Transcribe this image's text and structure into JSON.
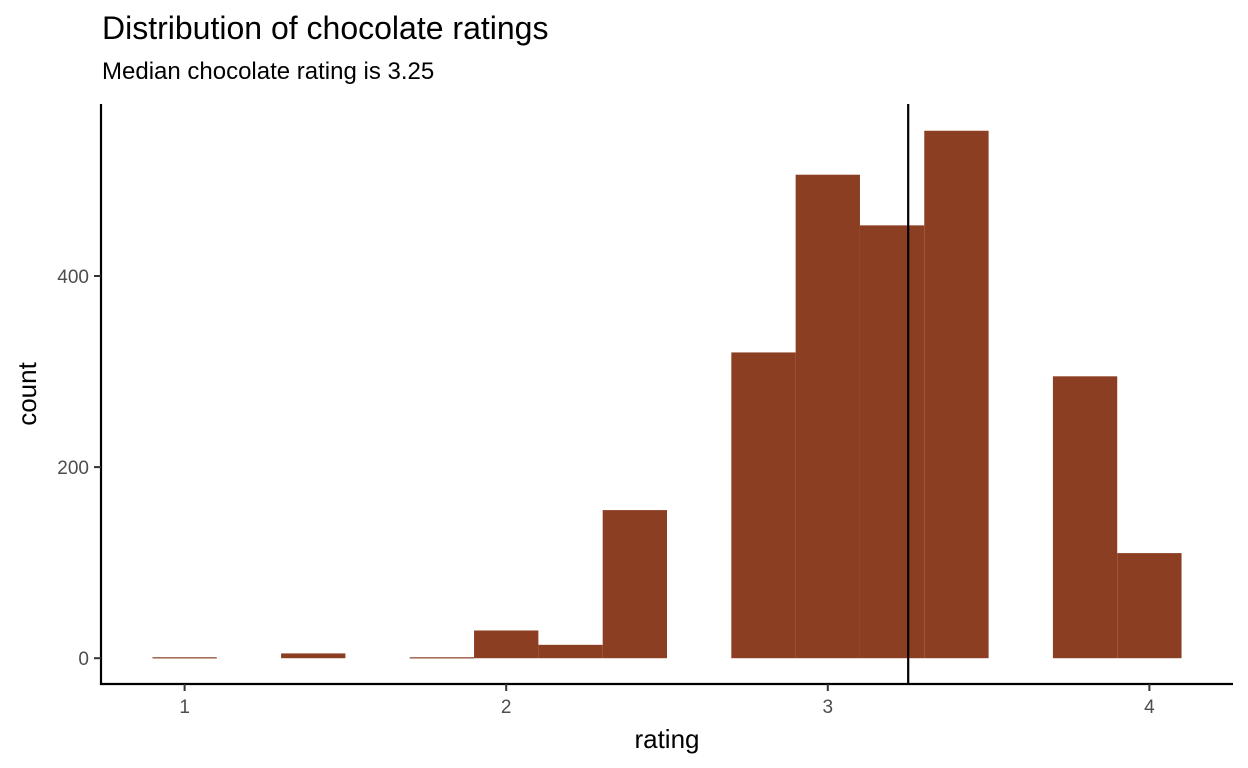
{
  "chart_data": {
    "type": "bar",
    "title": "Distribution of chocolate ratings",
    "subtitle": "Median chocolate rating is 3.25",
    "xlabel": "rating",
    "ylabel": "count",
    "xlim": [
      0.74,
      4.26
    ],
    "ylim": [
      -27,
      580
    ],
    "x_ticks": [
      1,
      2,
      3,
      4
    ],
    "y_ticks": [
      0,
      200,
      400
    ],
    "bin_width": 0.2,
    "bins": [
      {
        "x": 1.0,
        "count": 1
      },
      {
        "x": 1.2,
        "count": 0
      },
      {
        "x": 1.4,
        "count": 5
      },
      {
        "x": 1.6,
        "count": 0
      },
      {
        "x": 1.8,
        "count": 1
      },
      {
        "x": 2.0,
        "count": 29
      },
      {
        "x": 2.2,
        "count": 14
      },
      {
        "x": 2.4,
        "count": 155
      },
      {
        "x": 2.6,
        "count": 0
      },
      {
        "x": 2.8,
        "count": 320
      },
      {
        "x": 3.0,
        "count": 506
      },
      {
        "x": 3.2,
        "count": 453
      },
      {
        "x": 3.4,
        "count": 552
      },
      {
        "x": 3.6,
        "count": 0
      },
      {
        "x": 3.8,
        "count": 295
      },
      {
        "x": 4.0,
        "count": 110
      }
    ],
    "median": 3.25,
    "bar_color": "#8B3E22",
    "grid": false
  }
}
